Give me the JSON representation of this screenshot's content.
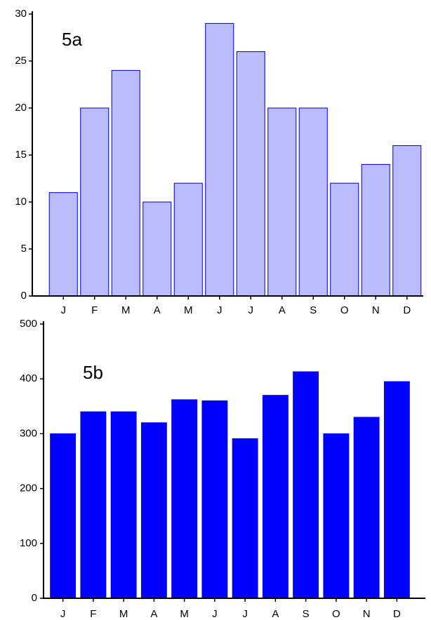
{
  "chart_data": [
    {
      "type": "bar",
      "title": "5a",
      "categories": [
        "J",
        "F",
        "M",
        "A",
        "M",
        "J",
        "J",
        "A",
        "S",
        "O",
        "N",
        "D"
      ],
      "values": [
        11,
        20,
        24,
        10,
        12,
        29,
        26,
        20,
        20,
        12,
        14,
        16
      ],
      "color": "#bbbbff",
      "edgecolor": "#0000cc",
      "ylim": [
        0,
        30
      ],
      "yticks": [
        0,
        5,
        10,
        15,
        20,
        25,
        30
      ]
    },
    {
      "type": "bar",
      "title": "5b",
      "categories": [
        "J",
        "F",
        "M",
        "A",
        "M",
        "J",
        "J",
        "A",
        "S",
        "O",
        "N",
        "D"
      ],
      "values": [
        300,
        340,
        340,
        320,
        362,
        360,
        291,
        370,
        413,
        300,
        330,
        395
      ],
      "color": "#0000ff",
      "edgecolor": "#0000ff",
      "ylim": [
        0,
        500
      ],
      "yticks": [
        0,
        100,
        200,
        300,
        400,
        500
      ]
    }
  ]
}
